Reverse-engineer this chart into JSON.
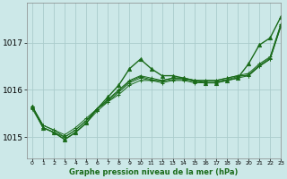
{
  "title": "Graphe pression niveau de la mer (hPa)",
  "background_color": "#cce8e8",
  "grid_color": "#aacccc",
  "line_color": "#1a6b1a",
  "xlim": [
    -0.5,
    23
  ],
  "ylim": [
    1014.55,
    1017.85
  ],
  "yticks": [
    1015,
    1016,
    1017
  ],
  "xticks": [
    0,
    1,
    2,
    3,
    4,
    5,
    6,
    7,
    8,
    9,
    10,
    11,
    12,
    13,
    14,
    15,
    16,
    17,
    18,
    19,
    20,
    21,
    22,
    23
  ],
  "series": [
    [
      1015.65,
      1015.25,
      1015.15,
      1015.05,
      1015.2,
      1015.4,
      1015.6,
      1015.75,
      1015.9,
      1016.1,
      1016.2,
      1016.2,
      1016.2,
      1016.25,
      1016.25,
      1016.2,
      1016.2,
      1016.2,
      1016.25,
      1016.3,
      1016.3,
      1016.5,
      1016.65,
      1017.35
    ],
    [
      1015.65,
      1015.25,
      1015.15,
      1015.0,
      1015.15,
      1015.35,
      1015.6,
      1015.8,
      1016.0,
      1016.2,
      1016.3,
      1016.25,
      1016.2,
      1016.25,
      1016.25,
      1016.2,
      1016.2,
      1016.2,
      1016.25,
      1016.3,
      1016.35,
      1016.55,
      1016.7,
      1017.4
    ],
    [
      1015.6,
      1015.2,
      1015.1,
      1014.95,
      1015.1,
      1015.3,
      1015.55,
      1015.75,
      1015.95,
      1016.15,
      1016.25,
      1016.2,
      1016.15,
      1016.2,
      1016.2,
      1016.15,
      1016.15,
      1016.15,
      1016.2,
      1016.25,
      1016.3,
      1016.5,
      1016.65,
      1017.35
    ],
    [
      1015.65,
      1015.2,
      1015.1,
      1015.0,
      1015.15,
      1015.35,
      1015.6,
      1015.78,
      1015.98,
      1016.18,
      1016.28,
      1016.22,
      1016.18,
      1016.22,
      1016.22,
      1016.18,
      1016.18,
      1016.18,
      1016.22,
      1016.28,
      1016.32,
      1016.52,
      1016.68,
      1017.38
    ]
  ],
  "highlight_series": {
    "data": [
      1015.65,
      1015.2,
      1015.1,
      1014.95,
      1015.1,
      1015.3,
      1015.6,
      1015.85,
      1016.1,
      1016.45,
      1016.65,
      1016.45,
      1016.3,
      1016.3,
      1016.25,
      1016.2,
      1016.15,
      1016.15,
      1016.2,
      1016.25,
      1016.55,
      1016.95,
      1017.1,
      1017.55
    ]
  }
}
